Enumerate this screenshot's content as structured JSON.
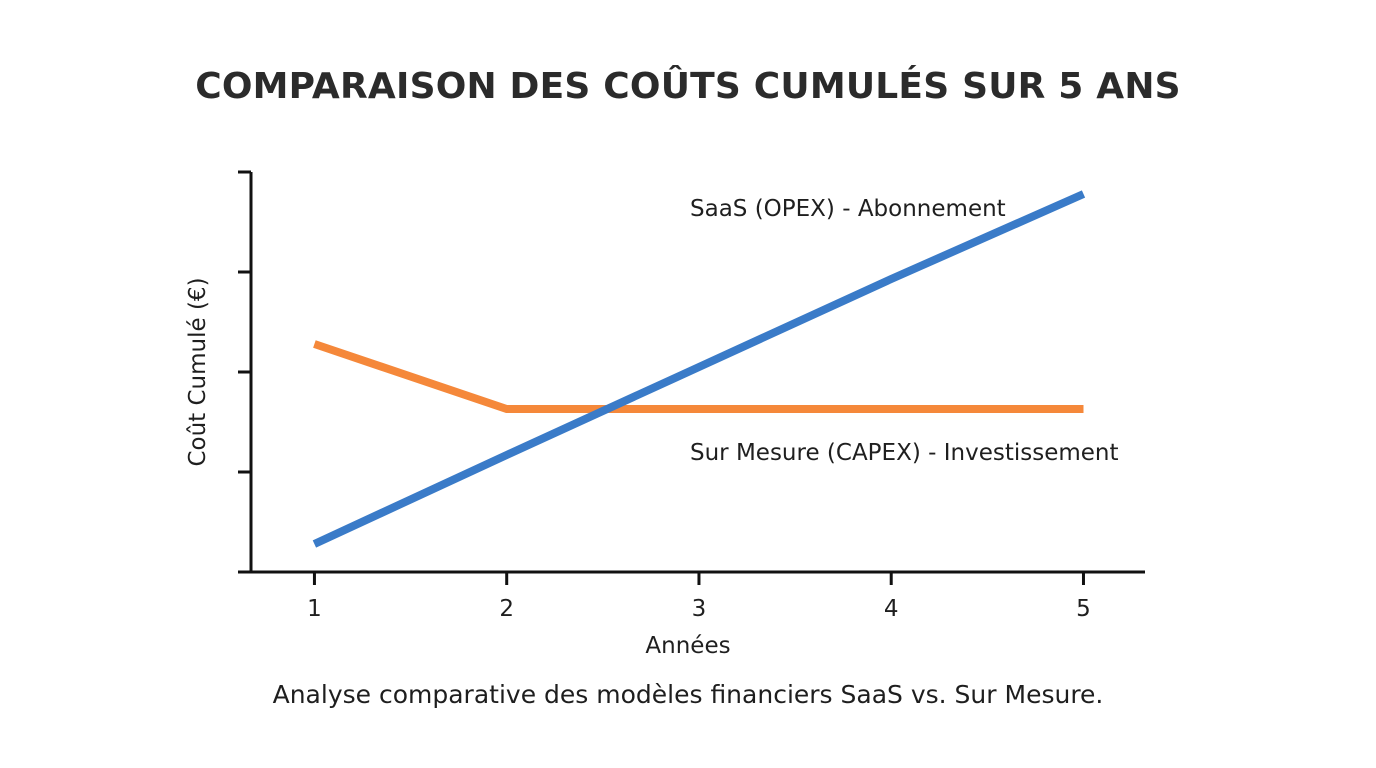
{
  "chart_data": {
    "type": "line",
    "title": "COMPARAISON DES COÛTS CUMULÉS SUR 5 ANS",
    "subtitle": "Analyse comparative des modèles financiers SaaS vs. Sur Mesure.",
    "xlabel": "Années",
    "ylabel": "Coût Cumulé (€)",
    "x": [
      1,
      2,
      3,
      4,
      5
    ],
    "xlim": [
      0.67,
      5.32
    ],
    "ylim": [
      0,
      4
    ],
    "y_ticks": [
      0,
      1,
      2,
      3,
      4
    ],
    "y_tick_labels_shown": false,
    "grid": false,
    "series": [
      {
        "name": "SaaS (OPEX) - Abonnement",
        "color": "#3a7bc8",
        "values": [
          0.28,
          1.17,
          2.05,
          2.93,
          3.78
        ]
      },
      {
        "name": "Sur Mesure (CAPEX) - Investissement",
        "color": "#f5883a",
        "values": [
          2.28,
          1.63,
          1.63,
          1.63,
          1.63
        ]
      }
    ]
  }
}
